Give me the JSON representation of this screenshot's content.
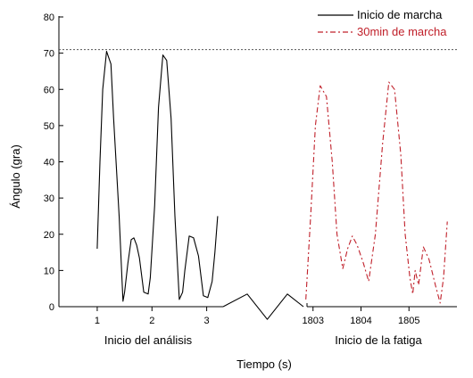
{
  "chart_data": {
    "type": "line",
    "xlabel": "Tiempo (s)",
    "ylabel": "Ángulo (gra)",
    "ylim": [
      0,
      80
    ],
    "yticks": [
      0,
      10,
      20,
      30,
      40,
      50,
      60,
      70,
      80
    ],
    "grid": false,
    "reference_line": {
      "y": 71,
      "style": "dotted",
      "color": "#555555"
    },
    "legend": {
      "placement": "top-right",
      "entries": [
        {
          "label": "Inicio de marcha",
          "color": "#000000",
          "dash": "solid"
        },
        {
          "label": "30min de marcha",
          "color": "#c0202a",
          "dash": "dash-dot"
        }
      ]
    },
    "segments": [
      {
        "label": "Inicio del análisis",
        "xlim": [
          0.3,
          3.3
        ],
        "xticks": [
          1,
          2,
          3
        ],
        "series": [
          {
            "name": "Inicio de marcha",
            "color": "#000000",
            "dash": "solid",
            "x": [
              1.0,
              1.05,
              1.1,
              1.17,
              1.25,
              1.3,
              1.4,
              1.47,
              1.5,
              1.56,
              1.62,
              1.67,
              1.72,
              1.77,
              1.85,
              1.93,
              1.97,
              2.05,
              2.12,
              2.2,
              2.27,
              2.35,
              2.42,
              2.5,
              2.56,
              2.6,
              2.68,
              2.76,
              2.85,
              2.94,
              3.02,
              3.1,
              3.15,
              3.2
            ],
            "y": [
              16,
              40,
              60,
              70.5,
              67,
              52,
              25,
              1.5,
              4,
              12,
              18.5,
              19,
              17,
              13.5,
              4,
              3.5,
              8,
              28,
              55,
              69.5,
              68,
              52,
              25,
              2,
              4,
              10,
              19.5,
              19,
              14,
              3,
              2.5,
              7,
              15,
              25
            ]
          }
        ]
      },
      {
        "label": "",
        "xlim": [
          0,
          1
        ],
        "xticks": [],
        "series": [
          {
            "name": "",
            "color": "#000000",
            "dash": "solid",
            "x": [
              0.0,
              0.3,
              0.55,
              0.8,
              1.0
            ],
            "y": [
              0,
              3.5,
              -3.5,
              3.5,
              0
            ]
          }
        ]
      },
      {
        "label": "Inicio de la fatiga",
        "xlim": [
          1802.8,
          1806.0
        ],
        "xticks": [
          1803,
          1804,
          1805
        ],
        "series": [
          {
            "name": "30min de marcha",
            "color": "#c0202a",
            "dash": "dash-dot",
            "x": [
              1802.85,
              1802.95,
              1803.05,
              1803.15,
              1803.28,
              1803.4,
              1803.5,
              1803.62,
              1803.72,
              1803.82,
              1803.92,
              1804.05,
              1804.16,
              1804.3,
              1804.45,
              1804.58,
              1804.7,
              1804.83,
              1804.92,
              1805.02,
              1805.08,
              1805.13,
              1805.2,
              1805.3,
              1805.42,
              1805.55,
              1805.65,
              1805.72,
              1805.8
            ],
            "y": [
              2,
              25,
              50,
              61,
              58,
              40,
              20,
              10.5,
              16,
              19.5,
              17,
              12,
              7,
              20,
              45,
              62,
              60,
              42,
              20,
              8,
              3.5,
              10,
              6,
              16.5,
              13,
              6,
              1,
              8,
              23.5
            ]
          }
        ]
      }
    ]
  }
}
